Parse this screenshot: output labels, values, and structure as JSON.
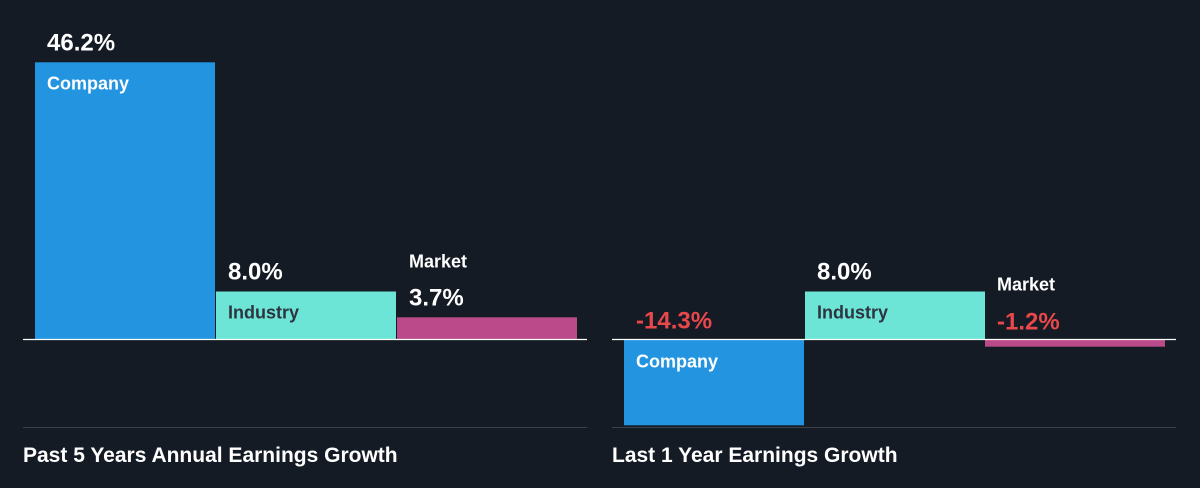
{
  "colors": {
    "background": "#151b24",
    "company": "#2394e0",
    "industry": "#6de5d6",
    "market": "#bb4a8a",
    "positive_label": "#ffffff",
    "negative_label": "#e8474b",
    "baseline": "#ffffff",
    "divider": "#3a414b"
  },
  "chart_data": [
    {
      "type": "bar",
      "title": "Past 5 Years Annual Earnings Growth",
      "categories": [
        "Company",
        "Industry",
        "Market"
      ],
      "values": [
        46.2,
        8.0,
        3.7
      ],
      "value_labels": [
        "46.2%",
        "8.0%",
        "3.7%"
      ],
      "unit": "%",
      "legend": "none",
      "grid": false
    },
    {
      "type": "bar",
      "title": "Last 1 Year Earnings Growth",
      "categories": [
        "Company",
        "Industry",
        "Market"
      ],
      "values": [
        -14.3,
        8.0,
        -1.2
      ],
      "value_labels": [
        "-14.3%",
        "8.0%",
        "-1.2%"
      ],
      "unit": "%",
      "legend": "none",
      "grid": false
    }
  ]
}
